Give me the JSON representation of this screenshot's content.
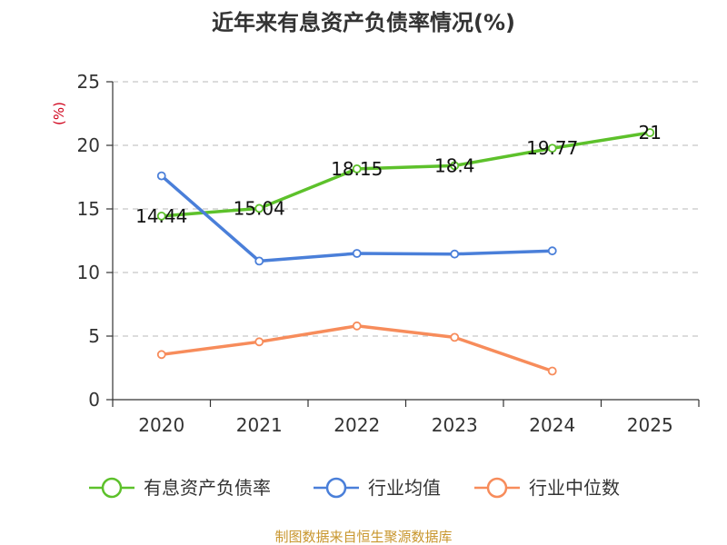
{
  "chart_data": {
    "type": "line",
    "title": "近年来有息资产负债率情况(%)",
    "ylabel": "(%)",
    "ylabel_color": "#d0021b",
    "xlabel": "",
    "categories": [
      "2020",
      "2021",
      "2022",
      "2023",
      "2024",
      "2025"
    ],
    "ylim": [
      0,
      25
    ],
    "yticks": [
      0,
      5,
      10,
      15,
      20,
      25
    ],
    "grid": true,
    "legend_position": "bottom",
    "series": [
      {
        "name": "有息资产负债率",
        "color": "#5dc12b",
        "values": [
          14.44,
          15.04,
          18.15,
          18.4,
          19.77,
          21
        ],
        "data_labels": [
          "14.44",
          "15.04",
          "18.15",
          "18.4",
          "19.77",
          "21"
        ]
      },
      {
        "name": "行业均值",
        "color": "#4a7fd9",
        "values": [
          17.6,
          10.9,
          11.5,
          11.45,
          11.7,
          null
        ]
      },
      {
        "name": "行业中位数",
        "color": "#f78c5b",
        "values": [
          3.55,
          4.55,
          5.8,
          4.9,
          2.25,
          null
        ]
      }
    ],
    "source": "制图数据来自恒生聚源数据库",
    "source_color": "#c8962d"
  }
}
